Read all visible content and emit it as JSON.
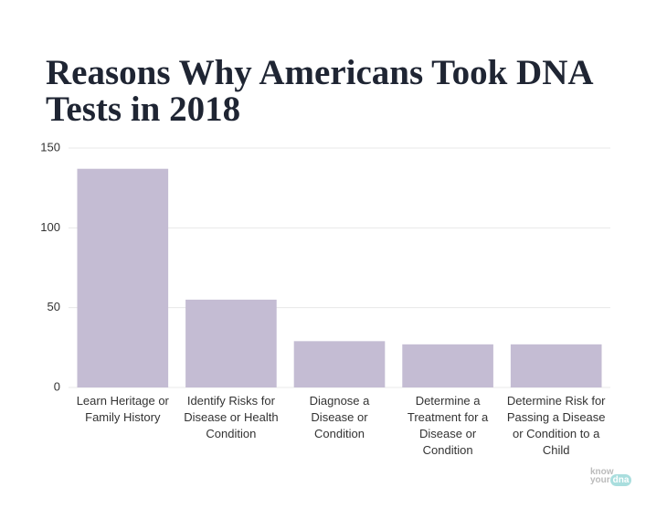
{
  "chart_data": {
    "type": "bar",
    "title": "Reasons Why Americans Took DNA Tests in 2018",
    "categories": [
      "Learn Heritage or Family History",
      "Identify Risks for Disease or Health Condition",
      "Diagnose a Disease or Condition",
      "Determine a Treatment for a Disease or Condition",
      "Determine Risk for Passing a Disease or Condition to a Child"
    ],
    "values": [
      137,
      55,
      29,
      27,
      27
    ],
    "color": "#c4bcd3",
    "ylim": [
      0,
      150
    ],
    "yticks": [
      0,
      50,
      100,
      150
    ],
    "grid": true
  },
  "logo": {
    "line1": "know",
    "line2": "your",
    "line3": "dna"
  }
}
